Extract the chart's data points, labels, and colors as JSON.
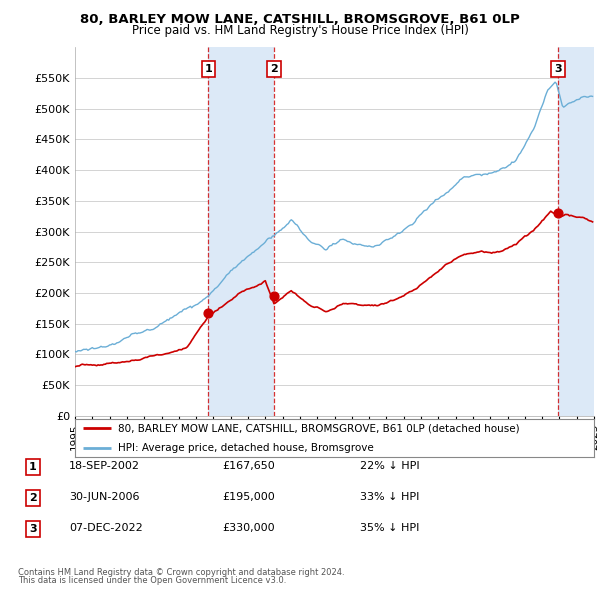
{
  "title": "80, BARLEY MOW LANE, CATSHILL, BROMSGROVE, B61 0LP",
  "subtitle": "Price paid vs. HM Land Registry's House Price Index (HPI)",
  "ylim": [
    0,
    600000
  ],
  "yticks": [
    0,
    50000,
    100000,
    150000,
    200000,
    250000,
    300000,
    350000,
    400000,
    450000,
    500000,
    550000
  ],
  "ytick_labels": [
    "£0",
    "£50K",
    "£100K",
    "£150K",
    "£200K",
    "£250K",
    "£300K",
    "£350K",
    "£400K",
    "£450K",
    "£500K",
    "£550K"
  ],
  "sale_color": "#cc0000",
  "hpi_color": "#6baed6",
  "shade_color": "#dce9f7",
  "vline_color": "#cc0000",
  "grid_color": "#cccccc",
  "background_color": "#ffffff",
  "sale_date_nums": [
    2002.716,
    2006.496,
    2022.927
  ],
  "sale_prices": [
    167650,
    195000,
    330000
  ],
  "sale_labels": [
    "1",
    "2",
    "3"
  ],
  "legend_items": [
    {
      "label": "80, BARLEY MOW LANE, CATSHILL, BROMSGROVE, B61 0LP (detached house)",
      "color": "#cc0000"
    },
    {
      "label": "HPI: Average price, detached house, Bromsgrove",
      "color": "#6baed6"
    }
  ],
  "table_rows": [
    {
      "num": "1",
      "date": "18-SEP-2002",
      "price": "£167,650",
      "pct": "22% ↓ HPI"
    },
    {
      "num": "2",
      "date": "30-JUN-2006",
      "price": "£195,000",
      "pct": "33% ↓ HPI"
    },
    {
      "num": "3",
      "date": "07-DEC-2022",
      "price": "£330,000",
      "pct": "35% ↓ HPI"
    }
  ],
  "footer": [
    "Contains HM Land Registry data © Crown copyright and database right 2024.",
    "This data is licensed under the Open Government Licence v3.0."
  ]
}
